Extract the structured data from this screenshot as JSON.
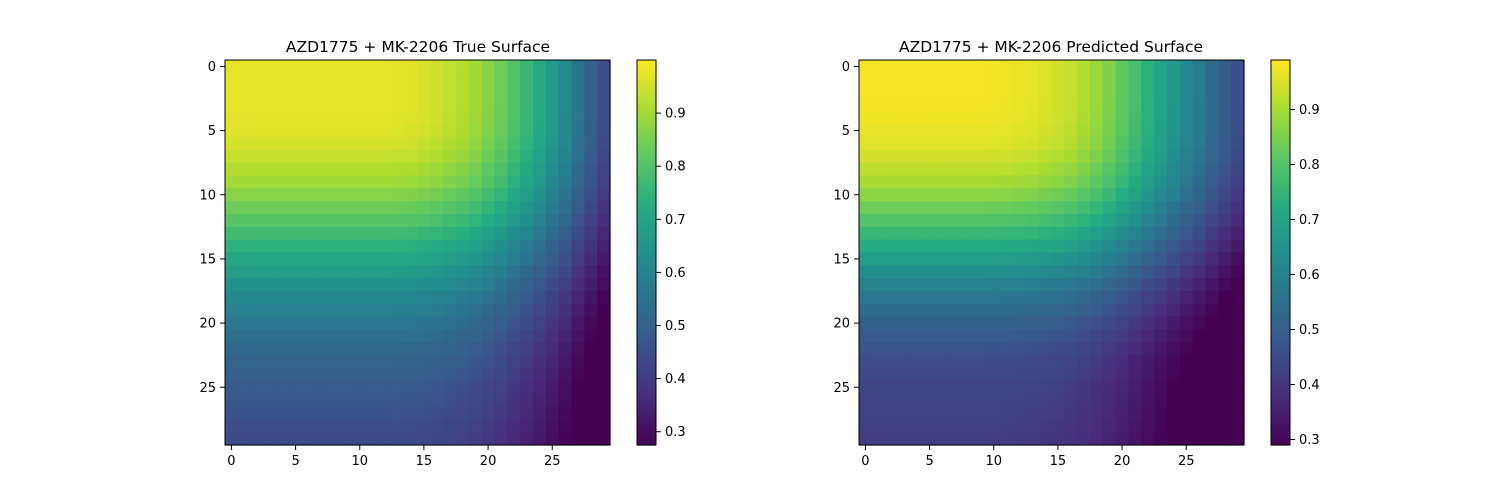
{
  "chart_data": [
    {
      "type": "heatmap",
      "title": "AZD1775 + MK-2206 True Surface",
      "xlabel": "",
      "ylabel": "",
      "grid_size": 30,
      "x_ticks": [
        "0",
        "5",
        "10",
        "15",
        "20",
        "25"
      ],
      "y_ticks": [
        "0",
        "5",
        "10",
        "15",
        "20",
        "25"
      ],
      "colormap": "viridis",
      "colorbar": {
        "range": [
          0.275,
          1.0
        ],
        "ticks": [
          "0.3",
          "0.4",
          "0.5",
          "0.6",
          "0.7",
          "0.8",
          "0.9"
        ]
      },
      "surface_model": {
        "corner_value": 0.975,
        "row_profile": [
          0.975,
          0.975,
          0.975,
          0.975,
          0.972,
          0.968,
          0.955,
          0.94,
          0.92,
          0.9,
          0.87,
          0.84,
          0.81,
          0.775,
          0.74,
          0.71,
          0.675,
          0.645,
          0.615,
          0.59,
          0.565,
          0.545,
          0.525,
          0.51,
          0.495,
          0.48,
          0.47,
          0.46,
          0.45,
          0.44
        ],
        "col_profile": [
          0.975,
          0.975,
          0.975,
          0.975,
          0.975,
          0.975,
          0.975,
          0.975,
          0.975,
          0.975,
          0.975,
          0.975,
          0.975,
          0.972,
          0.968,
          0.96,
          0.95,
          0.935,
          0.92,
          0.9,
          0.87,
          0.84,
          0.8,
          0.76,
          0.72,
          0.67,
          0.62,
          0.56,
          0.5,
          0.45
        ]
      }
    },
    {
      "type": "heatmap",
      "title": "AZD1775 + MK-2206 Predicted Surface",
      "xlabel": "",
      "ylabel": "",
      "grid_size": 30,
      "x_ticks": [
        "0",
        "5",
        "10",
        "15",
        "20",
        "25"
      ],
      "y_ticks": [
        "0",
        "5",
        "10",
        "15",
        "20",
        "25"
      ],
      "colormap": "viridis",
      "colorbar": {
        "range": [
          0.29,
          0.99
        ],
        "ticks": [
          "0.3",
          "0.4",
          "0.5",
          "0.6",
          "0.7",
          "0.8",
          "0.9"
        ]
      },
      "surface_model": {
        "corner_value": 0.98,
        "row_profile": [
          0.98,
          0.98,
          0.98,
          0.978,
          0.975,
          0.97,
          0.96,
          0.945,
          0.925,
          0.9,
          0.87,
          0.835,
          0.8,
          0.76,
          0.72,
          0.68,
          0.64,
          0.6,
          0.57,
          0.54,
          0.51,
          0.49,
          0.47,
          0.455,
          0.445,
          0.435,
          0.43,
          0.425,
          0.42,
          0.415
        ],
        "col_profile": [
          0.98,
          0.98,
          0.98,
          0.98,
          0.98,
          0.98,
          0.98,
          0.98,
          0.98,
          0.98,
          0.978,
          0.975,
          0.97,
          0.965,
          0.955,
          0.945,
          0.93,
          0.91,
          0.885,
          0.855,
          0.82,
          0.78,
          0.74,
          0.7,
          0.66,
          0.62,
          0.58,
          0.54,
          0.5,
          0.46
        ]
      }
    }
  ]
}
